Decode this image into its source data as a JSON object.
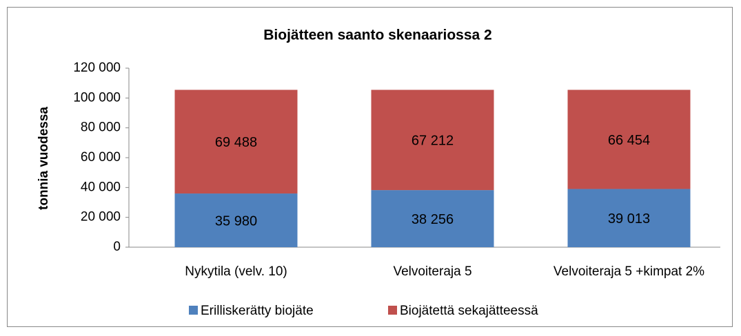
{
  "chart_data": {
    "type": "stacked_bar",
    "title": "Biojätteen saanto skenaariossa 2",
    "ylabel": "tonnia vuodessa",
    "categories": [
      "Nykytila (velv. 10)",
      "Velvoiteraja 5",
      "Velvoiteraja 5 +kimpat 2%"
    ],
    "series": [
      {
        "name": "Erilliskerätty biojäte",
        "color": "#4f81bd",
        "values": [
          35980,
          38256,
          39013
        ],
        "value_labels": [
          "35 980",
          "38 256",
          "39 013"
        ]
      },
      {
        "name": "Biojätettä sekajätteessä",
        "color": "#c0504d",
        "values": [
          69488,
          67212,
          66454
        ],
        "value_labels": [
          "69 488",
          "67 212",
          "66 454"
        ]
      }
    ],
    "ylim": [
      0,
      120000
    ],
    "yticks": [
      0,
      {
        "value": 20000,
        "label": "20 000"
      },
      {
        "value": 40000,
        "label": "40 000"
      },
      {
        "value": 60000,
        "label": "60 000"
      },
      {
        "value": 80000,
        "label": "80 000"
      },
      {
        "value": 100000,
        "label": "100 000"
      },
      {
        "value": 120000,
        "label": "120 000"
      }
    ],
    "legend": "bottom"
  }
}
